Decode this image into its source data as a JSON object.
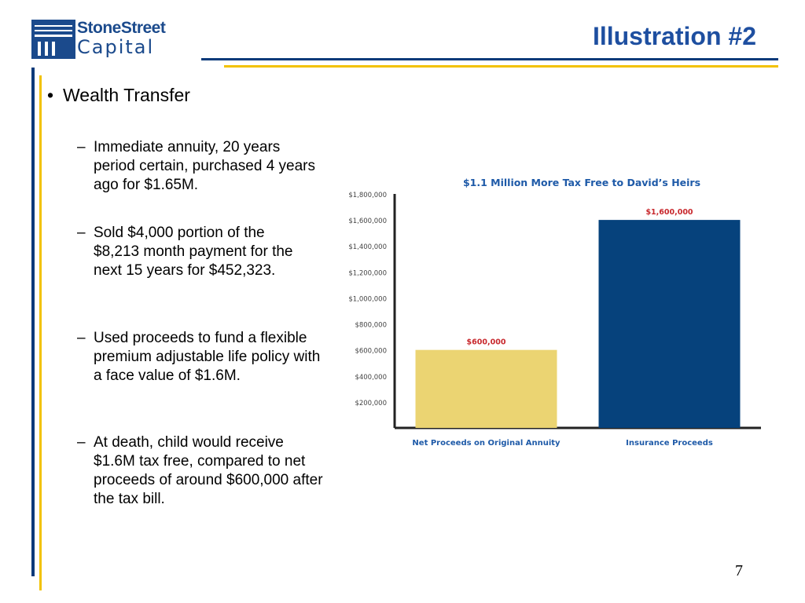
{
  "logo": {
    "line1": "StoneStreet",
    "line2": "Capital"
  },
  "slide": {
    "title": "Illustration #2",
    "page_number": "7",
    "bullet": "Wealth Transfer",
    "subbullets": [
      {
        "dash": "–",
        "text": "Immediate annuity, 20 years period certain, purchased 4 years ago for $1.65M."
      },
      {
        "dash": "–",
        "text": "Sold $4,000 portion of the $8,213 month payment for the next 15 years for $452,323."
      },
      {
        "dash": "–",
        "text": "Used proceeds to fund a flexible premium adjustable life policy with a face value of $1.6M."
      },
      {
        "dash": "–",
        "text": "At death, child would receive $1.6M tax free, compared to net proceeds of around $600,000 after the tax bill."
      }
    ]
  },
  "colors": {
    "navy": "#0a3a7a",
    "gold": "#f2c200",
    "title_blue": "#1e4fa0",
    "bar_gold": "#ebd472",
    "bar_navy": "#06427c",
    "label_red": "#c8282d"
  },
  "chart_data": {
    "type": "bar",
    "title": "$1.1 Million More Tax Free to David’s Heirs",
    "categories": [
      "Net Proceeds on Original Annuity",
      "Insurance Proceeds"
    ],
    "values": [
      600000,
      1600000
    ],
    "data_labels": [
      "$600,000",
      "$1,600,000"
    ],
    "bar_colors": [
      "#ebd472",
      "#06427c"
    ],
    "ylim": [
      0,
      1800000
    ],
    "yticks": [
      200000,
      400000,
      600000,
      800000,
      1000000,
      1200000,
      1400000,
      1600000,
      1800000
    ],
    "ytick_labels": [
      "$200,000",
      "$400,000",
      "$600,000",
      "$800,000",
      "$1,000,000",
      "$1,200,000",
      "$1,400,000",
      "$1,600,000",
      "$1,800,000"
    ],
    "grid": false,
    "legend": "none"
  }
}
